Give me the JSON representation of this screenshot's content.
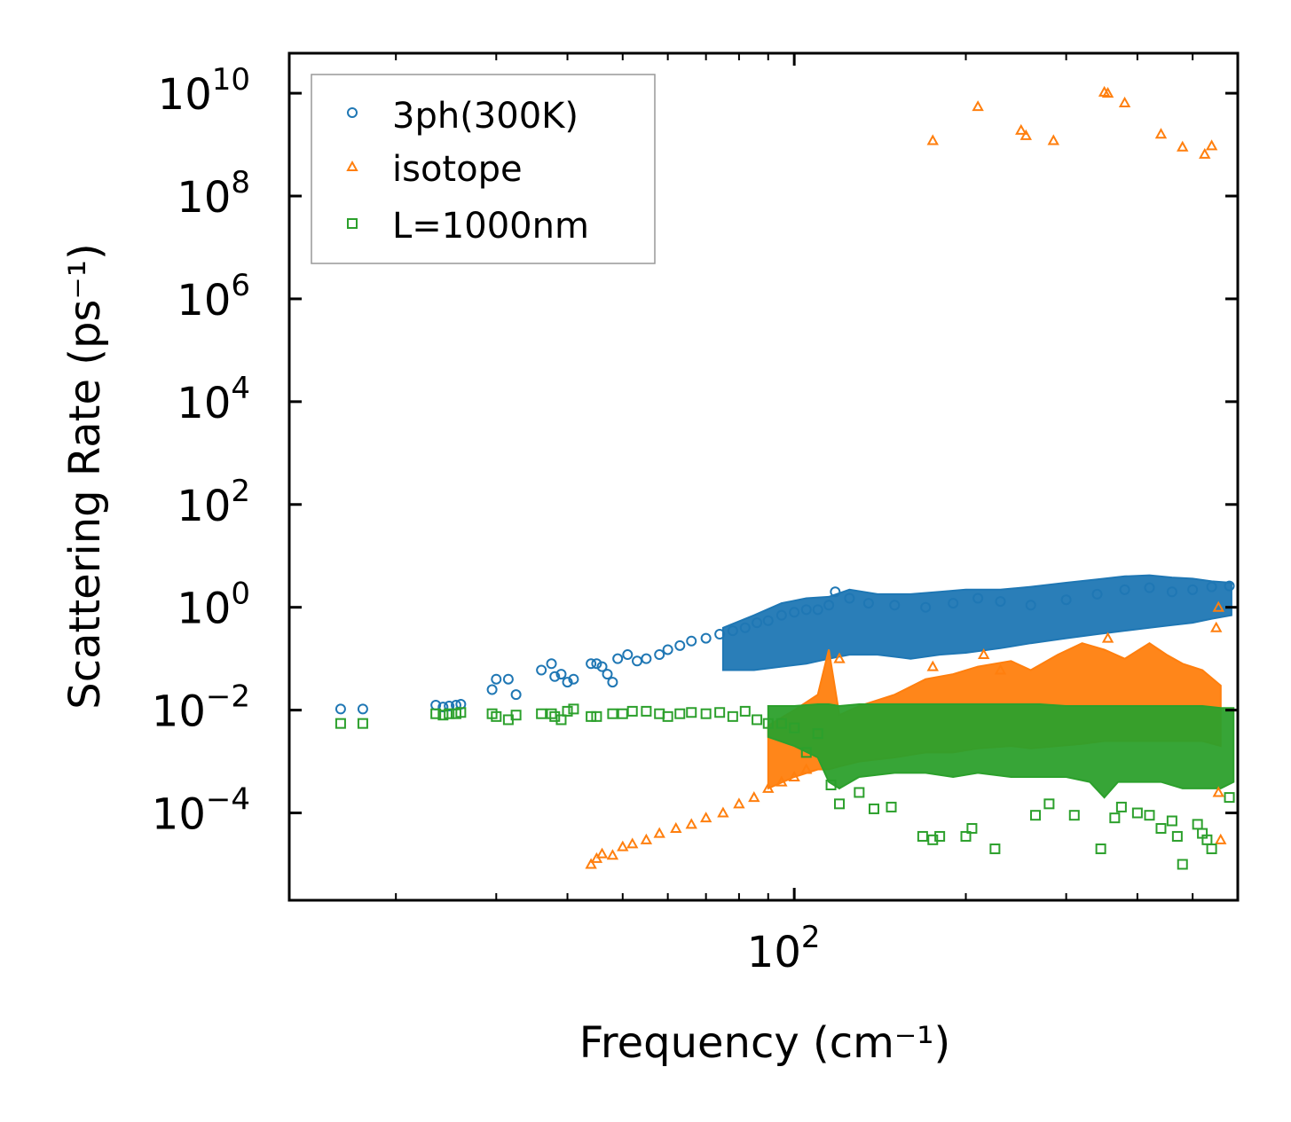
{
  "chart_data": {
    "type": "scatter",
    "title": "",
    "xlabel": "Frequency (cm⁻¹)",
    "ylabel": "Scattering Rate (ps⁻¹)",
    "xscale": "log",
    "yscale": "log",
    "xlim": [
      13,
      600
    ],
    "ylim": [
      2e-06,
      60000000000.0
    ],
    "x_ticks": [
      {
        "value": 100,
        "base": "10",
        "exp": "2"
      }
    ],
    "y_ticks": [
      {
        "value": 0.0001,
        "base": "10",
        "exp": "−4"
      },
      {
        "value": 0.01,
        "base": "10",
        "exp": "−2"
      },
      {
        "value": 1,
        "base": "10",
        "exp": "0"
      },
      {
        "value": 100,
        "base": "10",
        "exp": "2"
      },
      {
        "value": 10000.0,
        "base": "10",
        "exp": "4"
      },
      {
        "value": 1000000.0,
        "base": "10",
        "exp": "6"
      },
      {
        "value": 100000000.0,
        "base": "10",
        "exp": "8"
      },
      {
        "value": 10000000000.0,
        "base": "10",
        "exp": "10"
      }
    ],
    "legend_position": "top-left",
    "series": [
      {
        "name": "3ph(300K)",
        "marker": "circle",
        "color": "#1f77b4",
        "points": [
          [
            16,
            0.0105
          ],
          [
            17.5,
            0.0105
          ],
          [
            23.5,
            0.0125
          ],
          [
            24.2,
            0.0115
          ],
          [
            24.8,
            0.012
          ],
          [
            25.5,
            0.0125
          ],
          [
            26,
            0.013
          ],
          [
            29.5,
            0.025
          ],
          [
            30,
            0.04
          ],
          [
            31.5,
            0.04
          ],
          [
            32.5,
            0.02
          ],
          [
            36,
            0.06
          ],
          [
            37.5,
            0.08
          ],
          [
            38,
            0.045
          ],
          [
            39,
            0.05
          ],
          [
            40,
            0.035
          ],
          [
            41,
            0.04
          ],
          [
            44,
            0.08
          ],
          [
            45,
            0.08
          ],
          [
            46,
            0.07
          ],
          [
            47,
            0.05
          ],
          [
            48,
            0.035
          ],
          [
            49,
            0.1
          ],
          [
            51,
            0.12
          ],
          [
            53,
            0.09
          ],
          [
            55,
            0.1
          ],
          [
            58,
            0.12
          ],
          [
            60,
            0.15
          ],
          [
            63,
            0.18
          ],
          [
            66,
            0.22
          ],
          [
            70,
            0.25
          ],
          [
            74,
            0.3
          ],
          [
            78,
            0.35
          ],
          [
            82,
            0.4
          ],
          [
            86,
            0.5
          ],
          [
            90,
            0.55
          ],
          [
            95,
            0.7
          ],
          [
            100,
            0.8
          ],
          [
            105,
            0.9
          ],
          [
            110,
            0.9
          ],
          [
            115,
            1.1
          ],
          [
            118,
            2.0
          ],
          [
            125,
            1.5
          ],
          [
            135,
            1.2
          ],
          [
            150,
            1.1
          ],
          [
            170,
            1.0
          ],
          [
            190,
            1.2
          ],
          [
            210,
            1.5
          ],
          [
            230,
            1.3
          ],
          [
            260,
            1.1
          ],
          [
            300,
            1.4
          ],
          [
            340,
            1.8
          ],
          [
            380,
            2.2
          ],
          [
            420,
            2.4
          ],
          [
            460,
            2.0
          ],
          [
            500,
            2.2
          ],
          [
            540,
            2.5
          ],
          [
            580,
            2.6
          ]
        ],
        "band": [
          [
            75,
            0.06,
            0.4
          ],
          [
            85,
            0.06,
            0.7
          ],
          [
            95,
            0.07,
            1.2
          ],
          [
            105,
            0.08,
            1.5
          ],
          [
            115,
            0.1,
            1.6
          ],
          [
            125,
            0.12,
            2.2
          ],
          [
            140,
            0.12,
            1.8
          ],
          [
            160,
            0.1,
            1.8
          ],
          [
            180,
            0.12,
            2.0
          ],
          [
            200,
            0.13,
            2.2
          ],
          [
            230,
            0.16,
            2.2
          ],
          [
            260,
            0.2,
            2.5
          ],
          [
            300,
            0.25,
            3.0
          ],
          [
            340,
            0.3,
            3.5
          ],
          [
            380,
            0.35,
            4.0
          ],
          [
            420,
            0.4,
            4.2
          ],
          [
            460,
            0.45,
            3.8
          ],
          [
            500,
            0.5,
            3.6
          ],
          [
            540,
            0.6,
            3.2
          ],
          [
            585,
            0.7,
            3.0
          ]
        ]
      },
      {
        "name": "isotope",
        "marker": "triangle",
        "color": "#ff7f0e",
        "points": [
          [
            44,
            1e-05
          ],
          [
            45,
            1.3e-05
          ],
          [
            46,
            1.6e-05
          ],
          [
            48,
            1.5e-05
          ],
          [
            50,
            2.2e-05
          ],
          [
            52,
            2.5e-05
          ],
          [
            55,
            3e-05
          ],
          [
            58,
            4e-05
          ],
          [
            62,
            5e-05
          ],
          [
            66,
            6e-05
          ],
          [
            70,
            8e-05
          ],
          [
            75,
            0.0001
          ],
          [
            80,
            0.00015
          ],
          [
            85,
            0.0002
          ],
          [
            90,
            0.0003
          ],
          [
            95,
            0.0004
          ],
          [
            100,
            0.0005
          ],
          [
            105,
            0.0007
          ],
          [
            175,
            1200000000.0
          ],
          [
            210,
            5500000000.0
          ],
          [
            250,
            1900000000.0
          ],
          [
            255,
            1500000000.0
          ],
          [
            285,
            1200000000.0
          ],
          [
            350,
            10500000000.0
          ],
          [
            355,
            10000000000.0
          ],
          [
            380,
            6500000000.0
          ],
          [
            440,
            1600000000.0
          ],
          [
            480,
            900000000.0
          ],
          [
            525,
            650000000.0
          ],
          [
            540,
            950000000.0
          ],
          [
            555,
            1.0
          ],
          [
            550,
            0.4
          ],
          [
            560,
            3e-05
          ],
          [
            555,
            0.00025
          ],
          [
            355,
            0.25
          ],
          [
            120,
            0.1
          ],
          [
            175,
            0.07
          ],
          [
            215,
            0.12
          ],
          [
            230,
            0.06
          ]
        ],
        "band": [
          [
            90,
            0.0003,
            0.005
          ],
          [
            100,
            0.0005,
            0.01
          ],
          [
            110,
            0.0007,
            0.02
          ],
          [
            115,
            0.0007,
            0.15
          ],
          [
            120,
            0.0008,
            0.008
          ],
          [
            130,
            0.001,
            0.012
          ],
          [
            150,
            0.0012,
            0.02
          ],
          [
            170,
            0.0015,
            0.04
          ],
          [
            190,
            0.0015,
            0.05
          ],
          [
            210,
            0.0018,
            0.07
          ],
          [
            240,
            0.002,
            0.09
          ],
          [
            260,
            0.0018,
            0.06
          ],
          [
            290,
            0.002,
            0.12
          ],
          [
            320,
            0.0022,
            0.2
          ],
          [
            350,
            0.0025,
            0.15
          ],
          [
            380,
            0.0025,
            0.1
          ],
          [
            420,
            0.0025,
            0.2
          ],
          [
            450,
            0.0025,
            0.12
          ],
          [
            480,
            0.0025,
            0.08
          ],
          [
            520,
            0.0025,
            0.06
          ],
          [
            560,
            0.002,
            0.03
          ]
        ]
      },
      {
        "name": "L=1000nm",
        "marker": "square",
        "color": "#2ca02c",
        "points": [
          [
            16,
            0.0055
          ],
          [
            17.5,
            0.0055
          ],
          [
            23.5,
            0.0085
          ],
          [
            24.2,
            0.008
          ],
          [
            24.8,
            0.0085
          ],
          [
            25.5,
            0.0085
          ],
          [
            26,
            0.009
          ],
          [
            29.5,
            0.0085
          ],
          [
            30,
            0.0075
          ],
          [
            31.5,
            0.0065
          ],
          [
            32.5,
            0.008
          ],
          [
            36,
            0.0085
          ],
          [
            37.5,
            0.0085
          ],
          [
            38,
            0.0075
          ],
          [
            39,
            0.0065
          ],
          [
            40,
            0.0095
          ],
          [
            41,
            0.0105
          ],
          [
            44,
            0.0075
          ],
          [
            45,
            0.0075
          ],
          [
            48,
            0.0085
          ],
          [
            50,
            0.0085
          ],
          [
            52,
            0.0095
          ],
          [
            55,
            0.0095
          ],
          [
            58,
            0.0085
          ],
          [
            60,
            0.0075
          ],
          [
            63,
            0.0085
          ],
          [
            66,
            0.009
          ],
          [
            70,
            0.0085
          ],
          [
            74,
            0.009
          ],
          [
            78,
            0.0075
          ],
          [
            82,
            0.0095
          ],
          [
            86,
            0.0065
          ],
          [
            90,
            0.0055
          ],
          [
            95,
            0.0055
          ],
          [
            100,
            0.0045
          ],
          [
            110,
            0.0035
          ],
          [
            105,
            0.0015
          ],
          [
            116,
            0.00035
          ],
          [
            120,
            0.00015
          ],
          [
            130,
            0.00025
          ],
          [
            138,
            0.00012
          ],
          [
            148,
            0.00013
          ],
          [
            168,
            3.5e-05
          ],
          [
            175,
            3e-05
          ],
          [
            180,
            3.5e-05
          ],
          [
            200,
            3.5e-05
          ],
          [
            205,
            5e-05
          ],
          [
            225,
            2e-05
          ],
          [
            265,
            9e-05
          ],
          [
            280,
            0.00015
          ],
          [
            310,
            9e-05
          ],
          [
            345,
            2e-05
          ],
          [
            365,
            8e-05
          ],
          [
            375,
            0.00013
          ],
          [
            400,
            0.0001
          ],
          [
            420,
            9e-05
          ],
          [
            440,
            5e-05
          ],
          [
            460,
            7e-05
          ],
          [
            470,
            3.5e-05
          ],
          [
            480,
            1e-05
          ],
          [
            510,
            6e-05
          ],
          [
            520,
            4e-05
          ],
          [
            530,
            3e-05
          ],
          [
            540,
            2e-05
          ],
          [
            580,
            0.0002
          ]
        ],
        "band": [
          [
            90,
            0.003,
            0.012
          ],
          [
            100,
            0.002,
            0.012
          ],
          [
            110,
            0.0012,
            0.013
          ],
          [
            115,
            0.0004,
            0.013
          ],
          [
            120,
            0.0003,
            0.012
          ],
          [
            130,
            0.0005,
            0.013
          ],
          [
            150,
            0.0006,
            0.013
          ],
          [
            170,
            0.0006,
            0.013
          ],
          [
            190,
            0.0005,
            0.013
          ],
          [
            210,
            0.0006,
            0.013
          ],
          [
            240,
            0.0005,
            0.013
          ],
          [
            270,
            0.0005,
            0.013
          ],
          [
            300,
            0.0005,
            0.012
          ],
          [
            330,
            0.0004,
            0.012
          ],
          [
            350,
            0.0002,
            0.012
          ],
          [
            370,
            0.0004,
            0.012
          ],
          [
            400,
            0.0004,
            0.012
          ],
          [
            440,
            0.0004,
            0.012
          ],
          [
            480,
            0.0003,
            0.012
          ],
          [
            520,
            0.0003,
            0.012
          ],
          [
            560,
            0.0003,
            0.011
          ],
          [
            590,
            0.0004,
            0.011
          ]
        ]
      }
    ]
  }
}
